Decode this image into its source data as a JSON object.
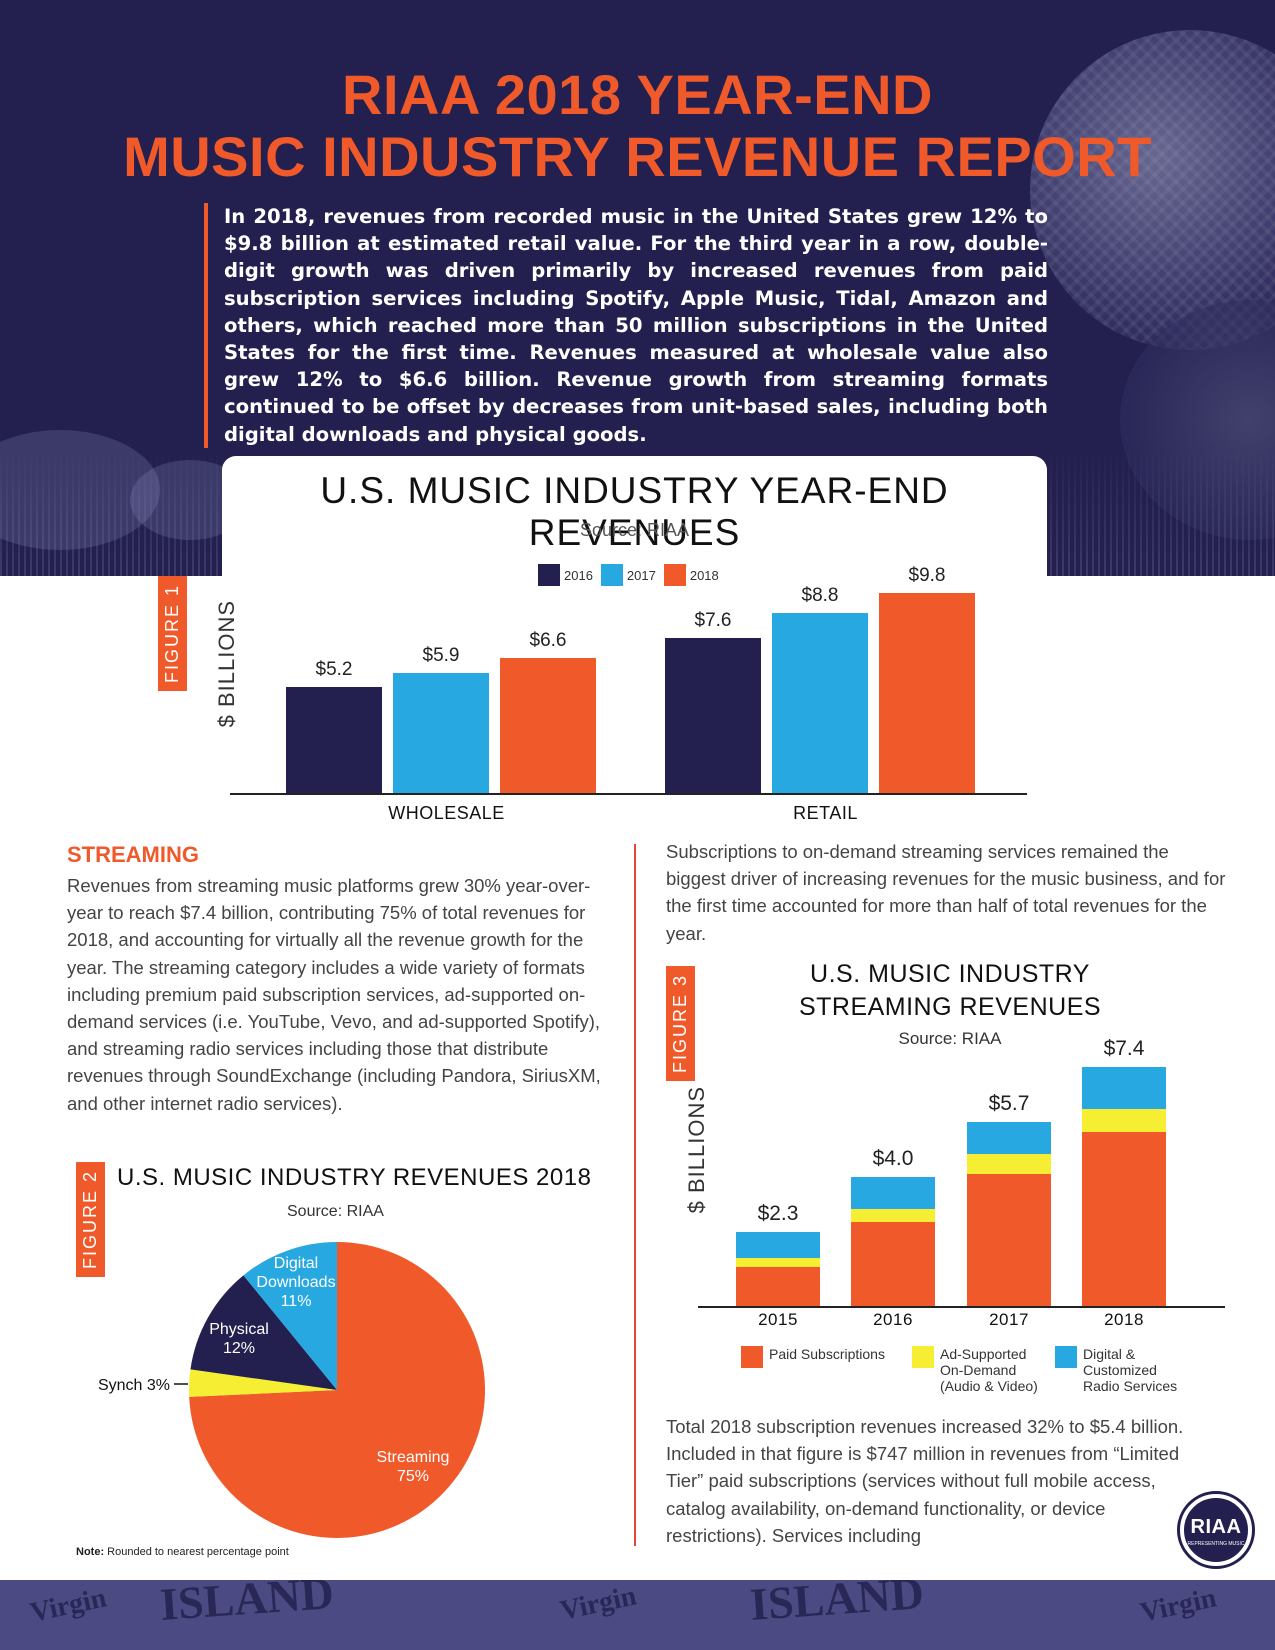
{
  "header": {
    "title_line1": "RIAA 2018 YEAR-END",
    "title_line2": "MUSIC INDUSTRY REVENUE REPORT",
    "intro": "In 2018, revenues from recorded music in the United States grew 12% to $9.8 billion at estimated retail value. For the third year in a row, double-digit growth was driven primarily by increased revenues from paid subscription services including Spotify, Apple Music, Tidal, Amazon and others, which reached more than 50 million subscriptions in the United States for the first time. Revenues measured at wholesale value also grew 12% to $6.6 billion. Revenue growth from streaming formats continued to be offset by decreases from unit-based sales, including both digital downloads and physical goods."
  },
  "colors": {
    "navy": "#23204f",
    "blue": "#27a8e0",
    "orange": "#f05a2a",
    "yellow": "#f5ee32"
  },
  "figure1": {
    "tag": "FIGURE 1",
    "ylabel": "$ BILLIONS"
  },
  "figure2": {
    "tag": "FIGURE 2",
    "note_label": "Note:",
    "note_text": "Rounded to nearest percentage point"
  },
  "figure3": {
    "tag": "FIGURE 3",
    "ylabel": "$ BILLIONS"
  },
  "chart_data": [
    {
      "type": "bar",
      "title": "U.S. MUSIC INDUSTRY YEAR-END REVENUES",
      "subtitle": "Source: RIAA",
      "ylabel": "$ BILLIONS",
      "categories": [
        "WHOLESALE",
        "RETAIL"
      ],
      "series": [
        {
          "name": "2016",
          "color": "#23204f",
          "values": [
            5.2,
            7.6
          ],
          "labels": [
            "$5.2",
            "$7.6"
          ]
        },
        {
          "name": "2017",
          "color": "#27a8e0",
          "values": [
            5.9,
            8.8
          ],
          "labels": [
            "$5.9",
            "$8.8"
          ]
        },
        {
          "name": "2018",
          "color": "#f05a2a",
          "values": [
            6.6,
            9.8
          ],
          "labels": [
            "$6.6",
            "$9.8"
          ]
        }
      ],
      "ylim": [
        0,
        10
      ],
      "legend": "top"
    },
    {
      "type": "pie",
      "title": "U.S. MUSIC INDUSTRY REVENUES 2018",
      "subtitle": "Source: RIAA",
      "slices": [
        {
          "name": "Streaming",
          "value": 75,
          "label": "75%",
          "color": "#f05a2a"
        },
        {
          "name": "Synch",
          "value": 3,
          "label": "Synch 3%",
          "color": "#f5ee32"
        },
        {
          "name": "Physical",
          "value": 12,
          "label": "12%",
          "color": "#23204f"
        },
        {
          "name": "Digital Downloads",
          "value": 11,
          "label": "11%",
          "color": "#27a8e0"
        }
      ]
    },
    {
      "type": "bar",
      "stacked": true,
      "title": "U.S. MUSIC INDUSTRY STREAMING REVENUES",
      "subtitle": "Source: RIAA",
      "ylabel": "$ BILLIONS",
      "categories": [
        "2015",
        "2016",
        "2017",
        "2018"
      ],
      "totals": [
        "$2.3",
        "$4.0",
        "$5.7",
        "$7.4"
      ],
      "series": [
        {
          "name": "Paid Subscriptions",
          "color": "#f05a2a",
          "values": [
            1.2,
            2.6,
            4.1,
            5.4
          ]
        },
        {
          "name": "Ad-Supported On-Demand (Audio & Video)",
          "color": "#f5ee32",
          "values": [
            0.3,
            0.4,
            0.6,
            0.7
          ]
        },
        {
          "name": "Digital & Customized Radio Services",
          "color": "#27a8e0",
          "values": [
            0.8,
            1.0,
            1.0,
            1.3
          ]
        }
      ],
      "ylim": [
        0,
        8
      ],
      "legend": "bottom"
    }
  ],
  "streaming": {
    "heading": "STREAMING",
    "body": "Revenues from streaming music platforms grew 30% year-over-year to reach $7.4 billion, contributing 75% of total revenues for 2018, and accounting for virtually all the revenue growth for the year. The streaming category includes a wide variety of formats including premium paid subscription services, ad-supported on-demand services (i.e. YouTube, Vevo, and ad-supported Spotify), and streaming radio services including those that distribute revenues through SoundExchange (including Pandora, SiriusXM, and other internet radio services).",
    "right_top": "Subscriptions to on-demand streaming services remained the biggest driver of increasing revenues for the music business, and for the first time accounted for more than half of total revenues for the year.",
    "right_bottom": "Total 2018 subscription revenues increased 32% to $5.4 billion. Included in that figure is $747 million in revenues from “Limited Tier” paid subscriptions (services without full mobile access, catalog availability, on-demand functionality, or device restrictions). Services including"
  },
  "logo": {
    "text": "RIAA",
    "subtext": "REPRESENTING MUSIC"
  },
  "footer_logos": [
    "Virgin",
    "ISLAND",
    "Virgin",
    "ISLAND",
    "Virgin"
  ]
}
